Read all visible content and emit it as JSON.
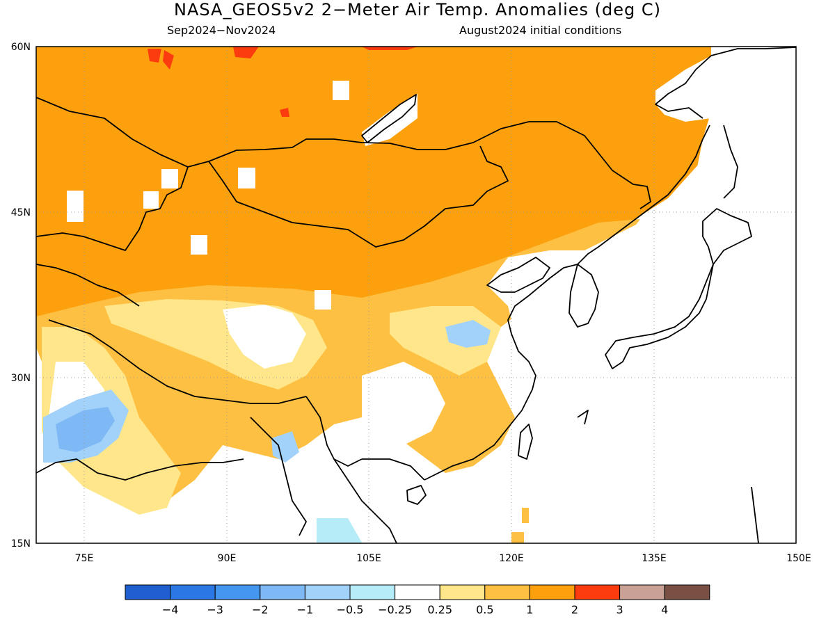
{
  "header": {
    "title": "NASA_GEOS5v2 2−Meter Air Temp. Anomalies (deg C)",
    "period": "Sep2024−Nov2024",
    "init": "August2024 initial conditions"
  },
  "map": {
    "lon_range": [
      70,
      150
    ],
    "lat_range": [
      15,
      60
    ],
    "lon_ticks": [
      "75E",
      "90E",
      "105E",
      "120E",
      "135E",
      "150E"
    ],
    "lat_ticks": [
      "60N",
      "45N",
      "30N",
      "15N"
    ],
    "grid": "dotted"
  },
  "colorbar": {
    "colors": [
      "#1f5fcf",
      "#2b78e4",
      "#4596ee",
      "#7eb8f5",
      "#a2d2fa",
      "#b6ecf8",
      "#ffffff",
      "#ffe68a",
      "#fec042",
      "#fca00e",
      "#fc3b0e",
      "#c9a196",
      "#7b5044"
    ],
    "labels": [
      "−4",
      "−3",
      "−2",
      "−1",
      "−0.5",
      "−0.25",
      "0.25",
      "0.5",
      "1",
      "2",
      "3",
      "4"
    ]
  }
}
